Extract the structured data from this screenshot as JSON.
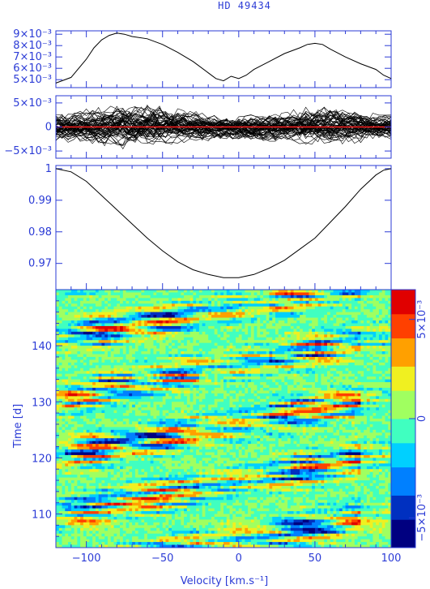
{
  "colors": {
    "axis": "#2b3bd6",
    "line": "#000000",
    "zero_line": "#ff2020"
  },
  "chart_data": [
    {
      "type": "line",
      "panel": "spectral-variance",
      "x": [
        -120,
        -110,
        -100,
        -95,
        -90,
        -85,
        -80,
        -75,
        -70,
        -60,
        -50,
        -40,
        -30,
        -20,
        -15,
        -10,
        -5,
        0,
        5,
        10,
        20,
        30,
        40,
        45,
        50,
        55,
        60,
        70,
        80,
        90,
        95,
        100
      ],
      "y": [
        0.0047,
        0.0052,
        0.0068,
        0.0078,
        0.0085,
        0.0089,
        0.0091,
        0.009,
        0.0088,
        0.0086,
        0.0081,
        0.0074,
        0.0066,
        0.0056,
        0.0051,
        0.0049,
        0.0053,
        0.0051,
        0.0054,
        0.0059,
        0.0066,
        0.0073,
        0.0078,
        0.0081,
        0.0082,
        0.0081,
        0.0077,
        0.007,
        0.0064,
        0.0059,
        0.0054,
        0.0051
      ],
      "ylim": [
        0.0043,
        0.0093
      ],
      "y_ticks": [
        {
          "v": 0.005,
          "t": "5×10⁻³"
        },
        {
          "v": 0.006,
          "t": "6×10⁻³"
        },
        {
          "v": 0.007,
          "t": "7×10⁻³"
        },
        {
          "v": 0.008,
          "t": "8×10⁻³"
        },
        {
          "v": 0.009,
          "t": "9×10⁻³"
        }
      ]
    },
    {
      "type": "line",
      "panel": "residual-profiles",
      "envelope_x": [
        -120,
        -100,
        -80,
        -70,
        -60,
        -40,
        -20,
        -10,
        0,
        20,
        40,
        50,
        60,
        80,
        100
      ],
      "envelope_y": [
        0.003,
        0.0035,
        0.0045,
        0.0046,
        0.0044,
        0.0037,
        0.0028,
        0.0025,
        0.0026,
        0.003,
        0.0036,
        0.004,
        0.0038,
        0.0032,
        0.0028
      ],
      "zero_line": 0,
      "ylim": [
        -0.0065,
        0.0065
      ],
      "y_ticks": [
        {
          "v": 0.005,
          "t": "5×10⁻³"
        },
        {
          "v": 0,
          "t": "0"
        },
        {
          "v": -0.005,
          "t": "−5×10⁻³"
        }
      ]
    },
    {
      "type": "line",
      "panel": "mean-profile",
      "x": [
        -120,
        -110,
        -100,
        -90,
        -80,
        -70,
        -60,
        -50,
        -40,
        -30,
        -20,
        -10,
        0,
        10,
        20,
        30,
        40,
        50,
        60,
        70,
        80,
        90,
        95,
        100
      ],
      "y": [
        1.0,
        0.999,
        0.996,
        0.9915,
        0.987,
        0.9825,
        0.978,
        0.974,
        0.9705,
        0.968,
        0.9665,
        0.9655,
        0.9655,
        0.9665,
        0.9685,
        0.971,
        0.9745,
        0.978,
        0.983,
        0.988,
        0.9935,
        0.998,
        0.9995,
        1.0
      ],
      "ylim": [
        0.9617,
        1.001
      ],
      "y_ticks": [
        {
          "v": 1,
          "t": "1"
        },
        {
          "v": 0.99,
          "t": "0.99"
        },
        {
          "v": 0.98,
          "t": "0.98"
        },
        {
          "v": 0.97,
          "t": "0.97"
        }
      ]
    },
    {
      "type": "heatmap",
      "panel": "dynamic-spectrum",
      "x_range": [
        -120,
        100
      ],
      "y_range": [
        104,
        150
      ],
      "colorbar_range": [
        -0.0065,
        0.0065
      ],
      "colorbar_ticks": [
        {
          "v": 0.005,
          "t": "5×10⁻³"
        },
        {
          "v": 0,
          "t": "0"
        },
        {
          "v": -0.005,
          "t": "−5×10⁻³"
        }
      ],
      "x_ticks": [
        -100,
        -50,
        0,
        50,
        100
      ],
      "y_ticks": [
        110,
        120,
        130,
        140
      ],
      "colormap": [
        "#000080",
        "#0030c0",
        "#0080ff",
        "#00d0ff",
        "#40ffc0",
        "#a0ff60",
        "#f0f020",
        "#ffa000",
        "#ff4000",
        "#e00000"
      ]
    }
  ],
  "labels": {
    "title": "HD   49434",
    "xlabel": "Velocity [km.s⁻¹]",
    "ylabel": "Time [d]"
  }
}
